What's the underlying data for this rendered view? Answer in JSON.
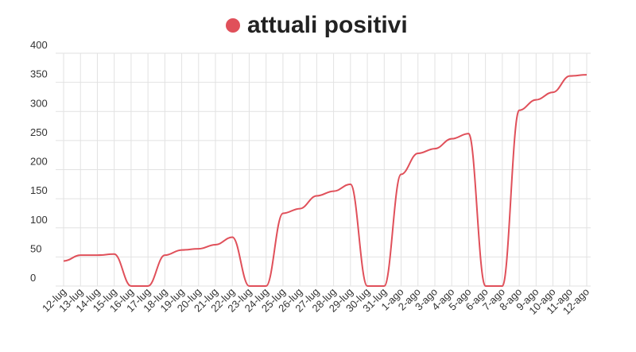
{
  "chart_data": {
    "type": "line",
    "categories": [
      "12-lug",
      "13-lug",
      "14-lug",
      "15-lug",
      "16-lug",
      "17-lug",
      "18-lug",
      "19-lug",
      "20-lug",
      "21-lug",
      "22-lug",
      "23-lug",
      "24-lug",
      "25-lug",
      "26-lug",
      "27-lug",
      "28-lug",
      "29-lug",
      "30-lug",
      "31-lug",
      "1-ago",
      "2-ago",
      "3-ago",
      "4-ago",
      "5-ago",
      "6-ago",
      "7-ago",
      "8-ago",
      "9-ago",
      "10-ago",
      "11-ago",
      "12-ago"
    ],
    "series": [
      {
        "name": "attuali positivi",
        "color": "#e0505a",
        "values": [
          43,
          53,
          53,
          55,
          0,
          0,
          53,
          62,
          64,
          71,
          84,
          0,
          0,
          125,
          133,
          155,
          163,
          175,
          0,
          0,
          192,
          228,
          236,
          253,
          262,
          0,
          0,
          302,
          320,
          333,
          361,
          363
        ]
      }
    ],
    "ylim": [
      0,
      400
    ],
    "yticks": [
      0,
      50,
      100,
      150,
      200,
      250,
      300,
      350,
      400
    ],
    "grid": true
  }
}
